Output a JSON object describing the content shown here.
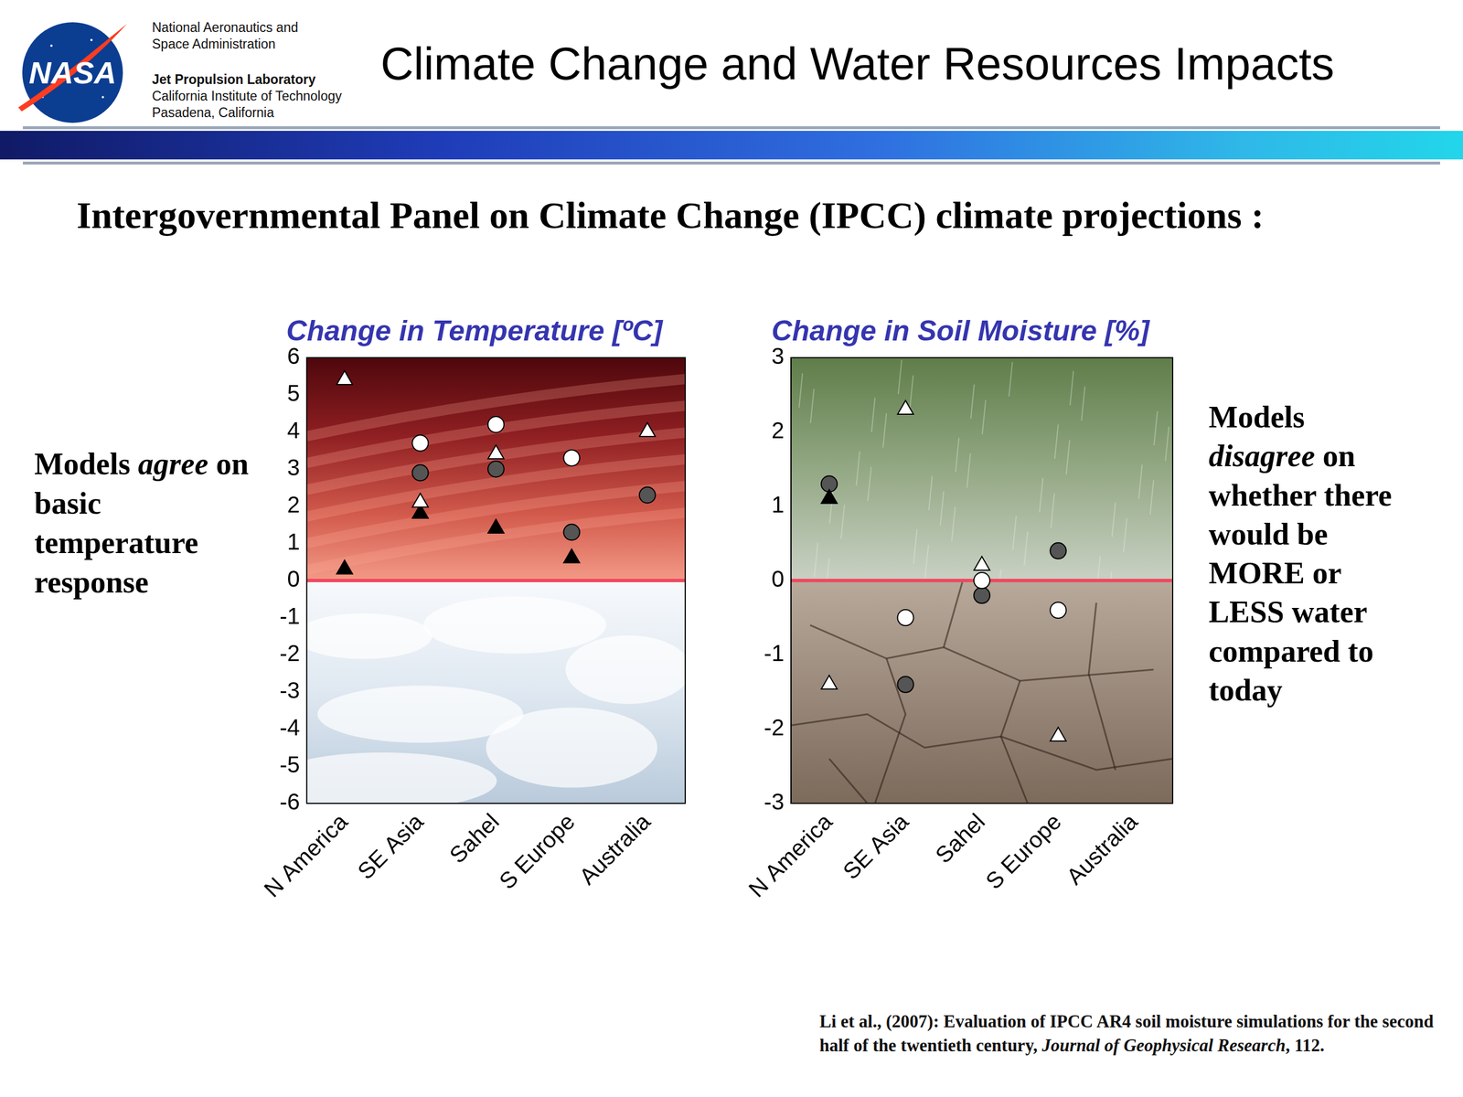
{
  "header": {
    "logo": "NASA",
    "agency": [
      "National Aeronautics and",
      "Space Administration"
    ],
    "lab": "Jet Propulsion Laboratory",
    "institution": [
      "California Institute of Technology",
      "Pasadena, California"
    ],
    "title": "Climate Change and Water Resources Impacts"
  },
  "subtitle": "Intergovernmental Panel on Climate Change (IPCC) climate projections :",
  "left_note": {
    "lines": [
      "Models agree on",
      "basic",
      "temperature",
      "response"
    ],
    "emphasis": "agree"
  },
  "right_note": {
    "lines": [
      "Models",
      "disagree on",
      "whether there",
      "would be",
      "MORE or",
      "LESS water",
      "compared to",
      "today"
    ],
    "emphasis": "disagree"
  },
  "citation": {
    "text": "Li et al., (2007): Evaluation of IPCC AR4 soil moisture simulations for the second half of the twentieth century,",
    "journal": "Journal of Geophysical Research",
    "end": ", 112."
  },
  "chart_data": [
    {
      "type": "scatter",
      "title": "Change in Temperature [ºC]",
      "categories": [
        "N America",
        "SE Asia",
        "Sahel",
        "S Europe",
        "Australia"
      ],
      "ylim": [
        -6,
        6
      ],
      "yticks": [
        -6,
        -5,
        -4,
        -3,
        -2,
        -1,
        0,
        1,
        2,
        3,
        4,
        5,
        6
      ],
      "grid": false,
      "reference_line": 0,
      "series": [
        {
          "color": "#ffffff",
          "marker": "triangle",
          "values": [
            5.4,
            2.1,
            3.4,
            null,
            4.0
          ]
        },
        {
          "color": "#000000",
          "marker": "triangle",
          "values": [
            0.3,
            1.8,
            1.4,
            0.6,
            null
          ]
        },
        {
          "color": "#ffffff",
          "marker": "circle",
          "values": [
            null,
            3.7,
            4.2,
            3.3,
            null
          ]
        },
        {
          "color": "#555555",
          "marker": "circle",
          "values": [
            null,
            2.9,
            3.0,
            1.3,
            2.3
          ]
        }
      ]
    },
    {
      "type": "scatter",
      "title": "Change in Soil Moisture [%]",
      "categories": [
        "N America",
        "SE Asia",
        "Sahel",
        "S Europe",
        "Australia"
      ],
      "ylim": [
        -3,
        3
      ],
      "yticks": [
        -3,
        -2,
        -1,
        0,
        1,
        2,
        3
      ],
      "grid": false,
      "reference_line": 0,
      "series": [
        {
          "color": "#ffffff",
          "marker": "triangle",
          "values": [
            -1.4,
            2.3,
            0.2,
            -2.1,
            null
          ]
        },
        {
          "color": "#000000",
          "marker": "triangle",
          "values": [
            1.1,
            null,
            null,
            null,
            null
          ]
        },
        {
          "color": "#ffffff",
          "marker": "circle",
          "values": [
            null,
            -0.5,
            0.0,
            -0.4,
            null
          ]
        },
        {
          "color": "#555555",
          "marker": "circle",
          "values": [
            1.3,
            -1.4,
            -0.2,
            0.4,
            null
          ]
        }
      ]
    }
  ]
}
